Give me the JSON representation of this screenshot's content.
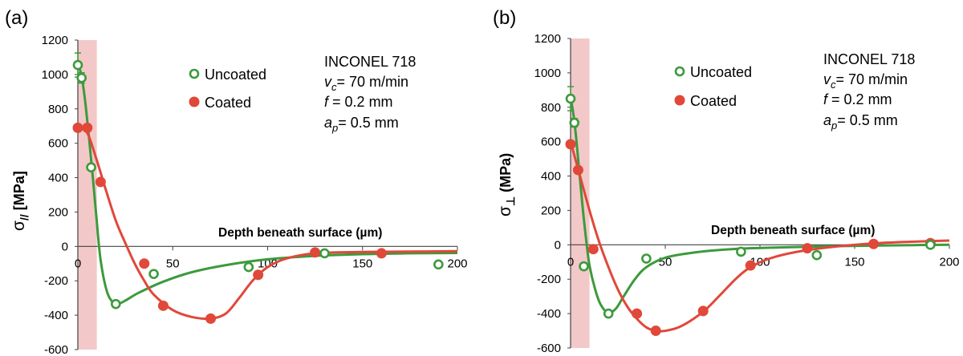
{
  "colors": {
    "uncoated": "#3c9a3c",
    "coated": "#e0483a",
    "shade": "#f3c8c8",
    "axis": "#444444"
  },
  "chart_data": [
    {
      "panel_label": "(a)",
      "type": "scatter",
      "ylabel_main": "σ",
      "ylabel_sub": "//",
      "ylabel_unit": " [MPa]",
      "xlabel": "Depth beneath surface (µm)",
      "xlim": [
        0,
        200
      ],
      "ylim": [
        -600,
        1200
      ],
      "xticks": [
        "0",
        "50",
        "100",
        "150",
        "200"
      ],
      "yticks": [
        "1200",
        "1000",
        "800",
        "600",
        "400",
        "200",
        "0",
        "-200",
        "-400",
        "-600"
      ],
      "shaded_region_x": [
        0,
        10
      ],
      "legend": {
        "uncoated": "Uncoated",
        "coated": "Coated"
      },
      "conditions": {
        "material": "INCONEL 718",
        "vc": "= 70 m/min",
        "f": "= 0.2 mm",
        "ap": "= 0.5 mm"
      },
      "series": [
        {
          "name": "Uncoated",
          "points": [
            [
              0,
              1055
            ],
            [
              2,
              980
            ],
            [
              7,
              460
            ],
            [
              20,
              -335
            ],
            [
              40,
              -160
            ],
            [
              90,
              -120
            ],
            [
              130,
              -40
            ],
            [
              190,
              -105
            ]
          ],
          "error_bars": [
            [
              0,
              1055,
              70
            ],
            [
              2,
              980,
              30
            ]
          ],
          "fit": [
            [
              0,
              1060
            ],
            [
              2,
              990
            ],
            [
              4,
              830
            ],
            [
              6,
              620
            ],
            [
              8,
              390
            ],
            [
              10,
              140
            ],
            [
              12,
              -80
            ],
            [
              15,
              -250
            ],
            [
              18,
              -320
            ],
            [
              21,
              -335
            ],
            [
              25,
              -315
            ],
            [
              32,
              -270
            ],
            [
              45,
              -205
            ],
            [
              60,
              -150
            ],
            [
              80,
              -105
            ],
            [
              100,
              -75
            ],
            [
              125,
              -55
            ],
            [
              150,
              -45
            ],
            [
              175,
              -40
            ],
            [
              200,
              -38
            ]
          ]
        },
        {
          "name": "Coated",
          "points": [
            [
              0,
              690
            ],
            [
              5,
              690
            ],
            [
              12,
              375
            ],
            [
              35,
              -100
            ],
            [
              45,
              -345
            ],
            [
              70,
              -420
            ],
            [
              95,
              -165
            ],
            [
              125,
              -35
            ],
            [
              160,
              -40
            ]
          ],
          "fit": [
            [
              0,
              700
            ],
            [
              5,
              660
            ],
            [
              10,
              500
            ],
            [
              15,
              320
            ],
            [
              20,
              150
            ],
            [
              25,
              20
            ],
            [
              30,
              -100
            ],
            [
              35,
              -200
            ],
            [
              40,
              -280
            ],
            [
              50,
              -370
            ],
            [
              60,
              -410
            ],
            [
              70,
              -420
            ],
            [
              78,
              -390
            ],
            [
              85,
              -300
            ],
            [
              92,
              -200
            ],
            [
              100,
              -120
            ],
            [
              110,
              -70
            ],
            [
              125,
              -40
            ],
            [
              150,
              -32
            ],
            [
              175,
              -30
            ],
            [
              200,
              -28
            ]
          ]
        }
      ]
    },
    {
      "panel_label": "(b)",
      "type": "scatter",
      "ylabel_main": "σ",
      "ylabel_sub": "⊥",
      "ylabel_unit": " (MPa)",
      "xlabel": "Depth beneath surface (µm)",
      "xlim": [
        0,
        200
      ],
      "ylim": [
        -600,
        1200
      ],
      "xticks": [
        "0",
        "50",
        "100",
        "150",
        "200"
      ],
      "yticks": [
        "1200",
        "1000",
        "800",
        "600",
        "400",
        "200",
        "0",
        "-200",
        "-400",
        "-600"
      ],
      "shaded_region_x": [
        0,
        10
      ],
      "legend": {
        "uncoated": "Uncoated",
        "coated": "Coated"
      },
      "conditions": {
        "material": "INCONEL 718",
        "vc": "= 70 m/min",
        "f": "= 0.2 mm",
        "ap": "= 0.5 mm"
      },
      "series": [
        {
          "name": "Uncoated",
          "points": [
            [
              0,
              850
            ],
            [
              2,
              710
            ],
            [
              7,
              -125
            ],
            [
              20,
              -400
            ],
            [
              40,
              -80
            ],
            [
              90,
              -40
            ],
            [
              130,
              -60
            ],
            [
              190,
              0
            ]
          ],
          "error_bars": [
            [
              0,
              850,
              70
            ],
            [
              2,
              710,
              25
            ]
          ],
          "fit": [
            [
              0,
              860
            ],
            [
              2,
              720
            ],
            [
              4,
              500
            ],
            [
              6,
              260
            ],
            [
              8,
              50
            ],
            [
              10,
              -120
            ],
            [
              13,
              -260
            ],
            [
              16,
              -350
            ],
            [
              20,
              -395
            ],
            [
              24,
              -370
            ],
            [
              28,
              -300
            ],
            [
              34,
              -200
            ],
            [
              40,
              -130
            ],
            [
              50,
              -75
            ],
            [
              65,
              -45
            ],
            [
              85,
              -25
            ],
            [
              110,
              -15
            ],
            [
              140,
              -8
            ],
            [
              170,
              -3
            ],
            [
              200,
              0
            ]
          ]
        },
        {
          "name": "Coated",
          "points": [
            [
              0,
              585
            ],
            [
              4,
              435
            ],
            [
              12,
              -25
            ],
            [
              35,
              -400
            ],
            [
              45,
              -500
            ],
            [
              70,
              -385
            ],
            [
              95,
              -120
            ],
            [
              125,
              -20
            ],
            [
              160,
              5
            ],
            [
              190,
              10
            ]
          ],
          "fit": [
            [
              0,
              600
            ],
            [
              5,
              400
            ],
            [
              10,
              200
            ],
            [
              15,
              20
            ],
            [
              20,
              -130
            ],
            [
              25,
              -260
            ],
            [
              30,
              -360
            ],
            [
              35,
              -430
            ],
            [
              40,
              -480
            ],
            [
              45,
              -500
            ],
            [
              50,
              -500
            ],
            [
              57,
              -480
            ],
            [
              65,
              -430
            ],
            [
              72,
              -370
            ],
            [
              80,
              -280
            ],
            [
              88,
              -190
            ],
            [
              95,
              -130
            ],
            [
              105,
              -80
            ],
            [
              120,
              -40
            ],
            [
              140,
              -10
            ],
            [
              160,
              8
            ],
            [
              180,
              18
            ],
            [
              200,
              25
            ]
          ]
        }
      ]
    }
  ]
}
